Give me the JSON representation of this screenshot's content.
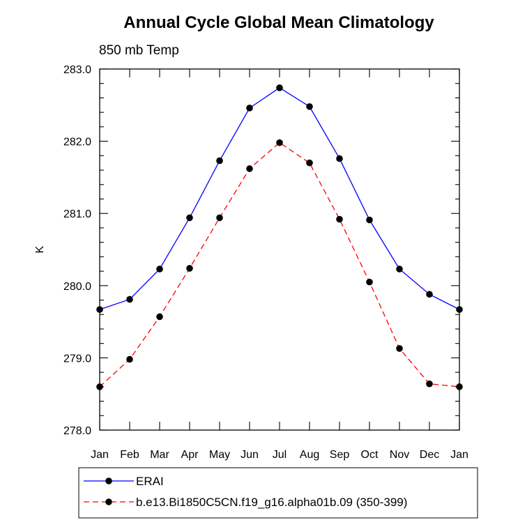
{
  "chart_data": {
    "type": "line",
    "title": "Annual Cycle Global Mean Climatology",
    "subtitle": "850 mb Temp",
    "xlabel": "",
    "ylabel": "K",
    "ylim": [
      278.0,
      283.0
    ],
    "yticks": [
      "278.0",
      "279.0",
      "280.0",
      "281.0",
      "282.0",
      "283.0"
    ],
    "categories": [
      "Jan",
      "Feb",
      "Mar",
      "Apr",
      "May",
      "Jun",
      "Jul",
      "Aug",
      "Sep",
      "Oct",
      "Nov",
      "Dec",
      "Jan"
    ],
    "grid": false,
    "legend_position": "bottom",
    "series": [
      {
        "name": "ERAI",
        "color": "#0000ff",
        "dash": "solid",
        "marker": "circle",
        "values": [
          279.67,
          279.81,
          280.23,
          280.94,
          281.73,
          282.46,
          282.74,
          282.48,
          281.76,
          280.91,
          280.23,
          279.88,
          279.67
        ]
      },
      {
        "name": "b.e13.Bi1850C5CN.f19_g16.alpha01b.09 (350-399)",
        "color": "#ff0000",
        "dash": "dashed",
        "marker": "circle",
        "values": [
          278.6,
          278.98,
          279.57,
          280.24,
          280.94,
          281.62,
          281.98,
          281.7,
          280.92,
          280.05,
          279.13,
          278.64,
          278.6
        ]
      }
    ]
  }
}
